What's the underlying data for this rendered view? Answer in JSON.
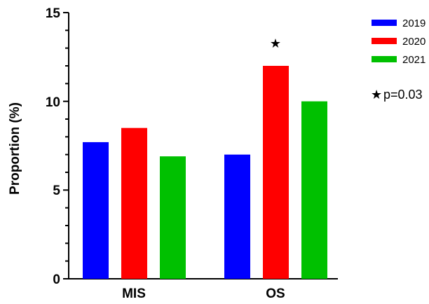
{
  "chart_data": {
    "type": "bar",
    "categories": [
      "MIS",
      "OS"
    ],
    "series": [
      {
        "name": "2019",
        "color": "#0000ff",
        "values": [
          7.7,
          7.0
        ]
      },
      {
        "name": "2020",
        "color": "#ff0000",
        "values": [
          8.5,
          12.0
        ]
      },
      {
        "name": "2021",
        "color": "#00c000",
        "values": [
          6.9,
          10.0
        ]
      }
    ],
    "title": "",
    "xlabel": "",
    "ylabel": "Proportion (%)",
    "ylim": [
      0,
      15
    ],
    "yticks": [
      "0",
      "5",
      "10",
      "15"
    ],
    "grid": false,
    "legend_position": "top-right",
    "annotations": {
      "significance_marker": "★",
      "significance_note_symbol": "★",
      "significance_note_text": "p=0.03"
    }
  }
}
